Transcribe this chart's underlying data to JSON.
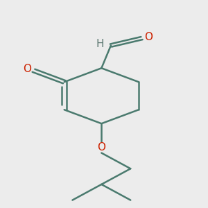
{
  "bg_color": "#ececec",
  "bond_color": "#4a7a6e",
  "bond_color_o": "#cc2200",
  "bond_color_h": "#607a74",
  "line_width": 1.8,
  "font_size_atom": 11,
  "canvas_xlim": [
    -1.8,
    2.2
  ],
  "canvas_ylim": [
    -4.2,
    2.0
  ]
}
